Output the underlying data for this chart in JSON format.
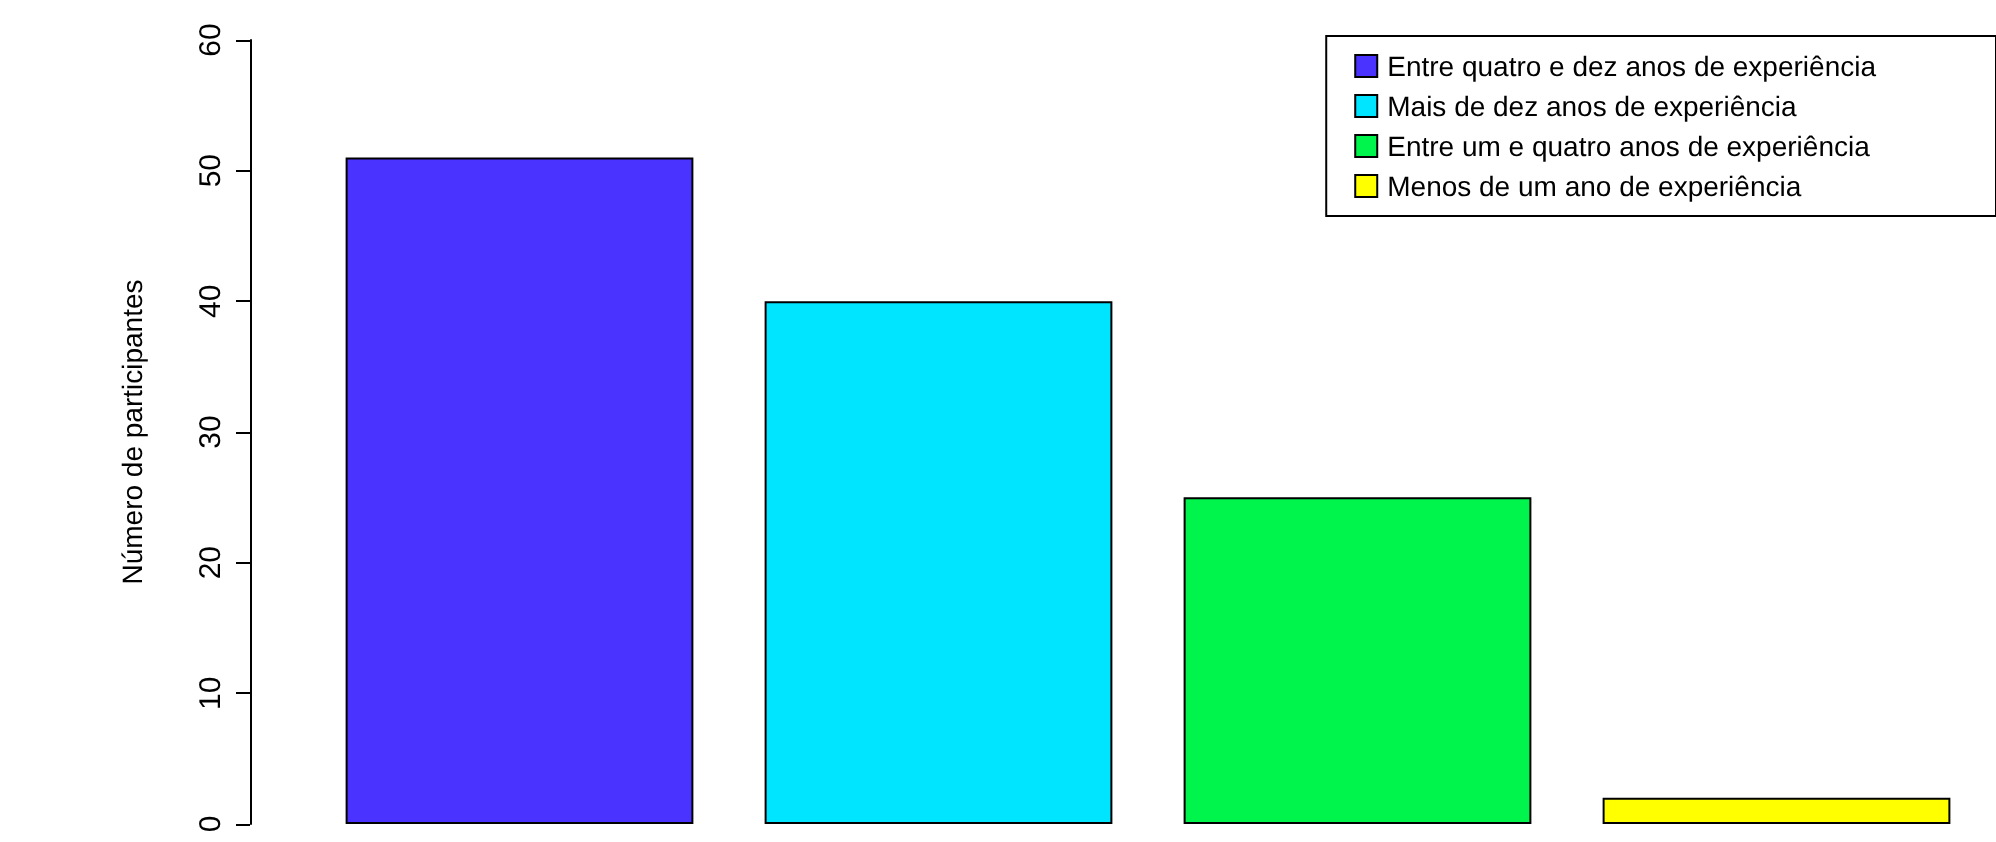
{
  "chart_data": {
    "type": "bar",
    "ylabel": "Número de participantes",
    "categories": [
      null,
      null,
      null,
      null
    ],
    "stacked": true,
    "series": [
      {
        "name": "Entre quatro e dez anos de experiência",
        "color": "#4b33ff",
        "values": [
          51,
          null,
          null,
          null
        ]
      },
      {
        "name": "Mais de dez anos de experiência",
        "color": "#00e5ff",
        "values": [
          null,
          40,
          null,
          null
        ]
      },
      {
        "name": "Entre um e quatro anos de experiência",
        "color": "#00f54c",
        "values": [
          null,
          null,
          25,
          null
        ]
      },
      {
        "name": "Menos de um ano de experiência",
        "color": "#ffff00",
        "values": [
          null,
          null,
          null,
          2
        ]
      }
    ],
    "ylim": [
      0,
      60
    ],
    "yticks": [
      0,
      10,
      20,
      30,
      40,
      50,
      60
    ],
    "legend": "top right",
    "tick_labels": "y"
  }
}
